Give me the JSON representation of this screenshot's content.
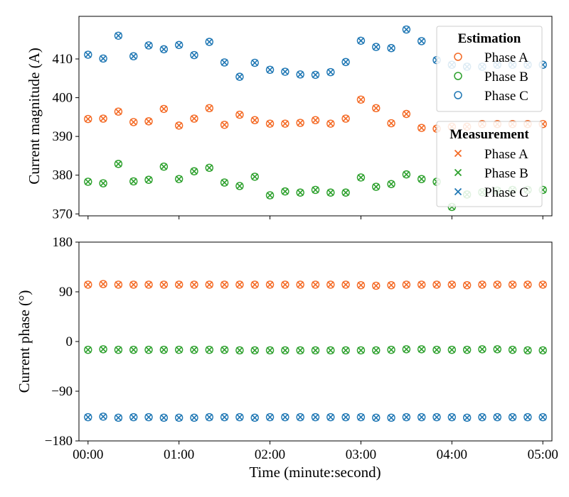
{
  "chart_data": [
    {
      "type": "scatter",
      "panel": "top",
      "ylabel": "Current magnitude (A)",
      "xlabel": "",
      "ylim": [
        369.5,
        421
      ],
      "yticks": [
        370,
        380,
        390,
        400,
        410
      ],
      "xlim": [
        -6,
        306
      ],
      "xticks": [
        0,
        60,
        120,
        180,
        240,
        300
      ],
      "xtick_labels": [
        "",
        "",
        "",
        "",
        "",
        ""
      ],
      "grid": false,
      "x": [
        0,
        10,
        20,
        30,
        40,
        50,
        60,
        70,
        80,
        90,
        100,
        110,
        120,
        130,
        140,
        150,
        160,
        170,
        180,
        190,
        200,
        210,
        220,
        230,
        240,
        250,
        260,
        270,
        280,
        290,
        300
      ],
      "series": [
        {
          "name": "Phase A",
          "color": "#f46a25",
          "values": [
            394.5,
            394.6,
            396.4,
            393.7,
            393.9,
            397.1,
            392.8,
            394.6,
            397.3,
            393.0,
            395.6,
            394.2,
            393.3,
            393.3,
            393.5,
            394.2,
            393.3,
            394.6,
            399.5,
            397.3,
            393.4,
            395.8,
            392.2,
            392.0,
            392.5,
            392.5,
            393.2,
            393.2,
            393.2,
            393.2,
            393.2
          ]
        },
        {
          "name": "Phase B",
          "color": "#2ca02c",
          "values": [
            378.3,
            377.9,
            382.9,
            378.4,
            378.8,
            382.2,
            379.0,
            381.0,
            381.9,
            378.1,
            377.2,
            379.6,
            374.8,
            375.8,
            375.5,
            376.2,
            375.5,
            375.5,
            379.4,
            377.0,
            377.7,
            380.2,
            379.0,
            378.3,
            371.8,
            375.0,
            375.6,
            376.0,
            376.2,
            376.2,
            376.2
          ]
        },
        {
          "name": "Phase C",
          "color": "#1f77b4",
          "values": [
            411.1,
            410.1,
            416.0,
            410.7,
            413.5,
            412.5,
            413.6,
            411.0,
            414.4,
            409.1,
            405.4,
            409.0,
            407.2,
            406.7,
            406.0,
            405.9,
            406.6,
            409.2,
            414.7,
            413.1,
            412.8,
            417.6,
            414.6,
            409.7,
            408.5,
            408.0,
            408.0,
            408.5,
            408.5,
            408.5,
            408.5
          ]
        }
      ],
      "legends": [
        {
          "title": "Estimation",
          "marker": "circle",
          "entries": [
            "Phase A",
            "Phase B",
            "Phase C"
          ]
        },
        {
          "title": "Measurement",
          "marker": "x",
          "entries": [
            "Phase A",
            "Phase B",
            "Phase C"
          ]
        }
      ],
      "legend_placement": "right"
    },
    {
      "type": "scatter",
      "panel": "bottom",
      "ylabel": "Current phase (°)",
      "xlabel": "Time (minute:second)",
      "ylim": [
        -180,
        180
      ],
      "yticks": [
        -180,
        -90,
        0,
        90,
        180
      ],
      "ytick_labels": [
        "−180",
        "−90",
        "0",
        "90",
        "180"
      ],
      "xlim": [
        -6,
        306
      ],
      "xticks": [
        0,
        60,
        120,
        180,
        240,
        300
      ],
      "xtick_labels": [
        "00:00",
        "01:00",
        "02:00",
        "03:00",
        "04:00",
        "05:00"
      ],
      "grid": false,
      "x": [
        0,
        10,
        20,
        30,
        40,
        50,
        60,
        70,
        80,
        90,
        100,
        110,
        120,
        130,
        140,
        150,
        160,
        170,
        180,
        190,
        200,
        210,
        220,
        230,
        240,
        250,
        260,
        270,
        280,
        290,
        300
      ],
      "series": [
        {
          "name": "Phase A",
          "color": "#f46a25",
          "values": [
            103,
            104,
            103,
            103,
            103,
            103,
            103,
            103,
            103,
            103,
            103,
            103,
            103,
            103,
            103,
            103,
            103,
            103,
            102,
            101,
            102,
            103,
            103,
            103,
            103,
            102,
            103,
            103,
            103,
            103,
            103
          ]
        },
        {
          "name": "Phase B",
          "color": "#2ca02c",
          "values": [
            -15,
            -14,
            -15,
            -15,
            -15,
            -15,
            -15,
            -15,
            -15,
            -15,
            -16,
            -16,
            -16,
            -16,
            -16,
            -16,
            -16,
            -16,
            -16,
            -16,
            -15,
            -14,
            -14,
            -15,
            -15,
            -15,
            -14,
            -14,
            -15,
            -16,
            -16
          ]
        },
        {
          "name": "Phase C",
          "color": "#1f77b4",
          "values": [
            -137,
            -136,
            -138,
            -137,
            -137,
            -138,
            -138,
            -138,
            -137,
            -137,
            -137,
            -138,
            -137,
            -137,
            -137,
            -137,
            -137,
            -137,
            -137,
            -138,
            -138,
            -137,
            -137,
            -137,
            -137,
            -138,
            -137,
            -137,
            -137,
            -137,
            -137
          ]
        }
      ]
    }
  ]
}
